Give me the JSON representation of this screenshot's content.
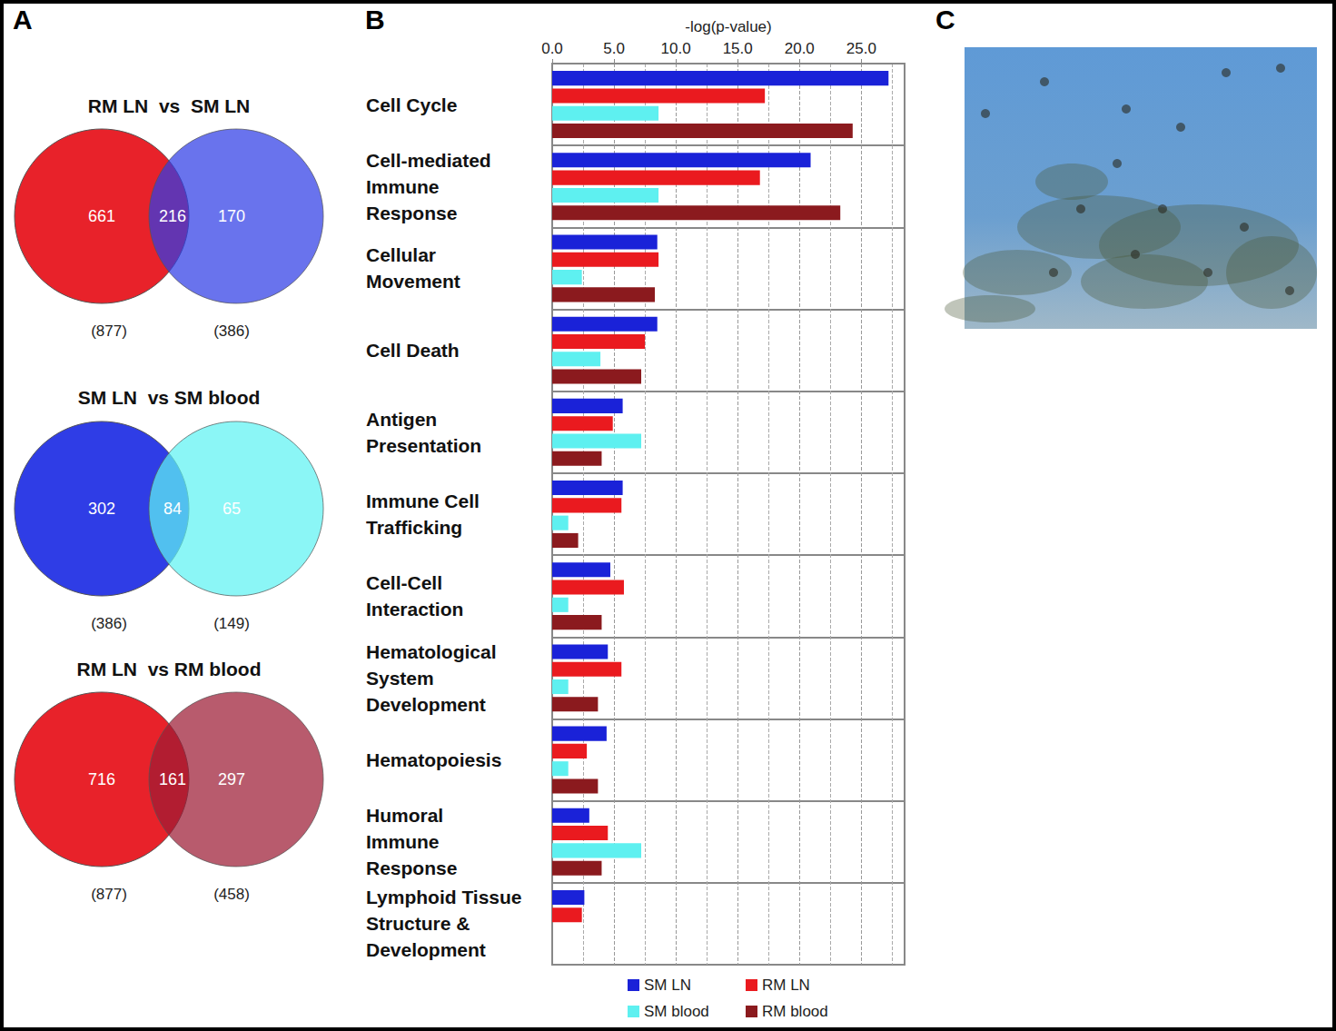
{
  "panel_labels": [
    "A",
    "B",
    "C"
  ],
  "venn": [
    {
      "title": "RM LN  vs  SM LN",
      "left_only": 661,
      "overlap": 216,
      "right_only": 170,
      "left_total": {
        "value": 877,
        "label": "(877)"
      },
      "right_total": {
        "value": 386,
        "label": "(386)"
      },
      "left_color": "#e8222a",
      "right_color": "#2f3de6"
    },
    {
      "title": "SM LN  vs SM blood",
      "left_only": 302,
      "overlap": 84,
      "right_only": 65,
      "left_total": {
        "value": 386,
        "label": "(386)"
      },
      "right_total": {
        "value": 149,
        "label": "(149)"
      },
      "left_color": "#2f3de6",
      "right_color": "#5ef2f2"
    },
    {
      "title": "RM LN  vs RM blood",
      "left_only": 716,
      "overlap": 161,
      "right_only": 297,
      "left_total": {
        "value": 877,
        "label": "(877)"
      },
      "right_total": {
        "value": 458,
        "label": "(458)"
      },
      "left_color": "#e8222a",
      "right_color": "#9c1c34"
    }
  ],
  "chart_data": {
    "type": "bar",
    "orientation": "horizontal",
    "x_label": "-log(p-value)",
    "categories": [
      "Cell Cycle",
      "Cell-mediated\nImmune\nResponse",
      "Cellular\nMovement",
      "Cell Death",
      "Antigen\nPresentation",
      "Immune Cell\nTrafficking",
      "Cell-Cell\nInteraction",
      "Hematological\nSystem\nDevelopment",
      "Hematopoiesis",
      "Humoral\nImmune\nResponse",
      "Lymphoid Tissue\nStructure &\nDevelopment"
    ],
    "series": [
      {
        "name": "SM LN",
        "color": "#1a22d8",
        "values": [
          27.2,
          20.9,
          8.5,
          8.5,
          5.7,
          5.7,
          4.7,
          4.5,
          4.4,
          3.0,
          2.6
        ]
      },
      {
        "name": "RM LN",
        "color": "#ea1a1f",
        "values": [
          17.2,
          16.8,
          8.6,
          7.5,
          4.9,
          5.6,
          5.8,
          5.6,
          2.8,
          4.5,
          2.4
        ]
      },
      {
        "name": "SM blood",
        "color": "#5ef0f0",
        "values": [
          8.6,
          8.6,
          2.4,
          3.9,
          7.2,
          1.3,
          1.3,
          1.3,
          1.3,
          7.2,
          null
        ]
      },
      {
        "name": "RM blood",
        "color": "#8b1a1e",
        "values": [
          24.3,
          23.3,
          8.3,
          7.2,
          4.0,
          2.1,
          4.0,
          3.7,
          3.7,
          4.0,
          null
        ]
      }
    ],
    "xlim": [
      0,
      28.5
    ],
    "xticks": [
      {
        "value": 0,
        "label": "0.0"
      },
      {
        "value": 5,
        "label": "5.0"
      },
      {
        "value": 10,
        "label": "10.0"
      },
      {
        "value": 15,
        "label": "15.0"
      },
      {
        "value": 20,
        "label": "20.0"
      },
      {
        "value": 25,
        "label": "25.0"
      }
    ],
    "grid": true,
    "legend": "bottom"
  }
}
